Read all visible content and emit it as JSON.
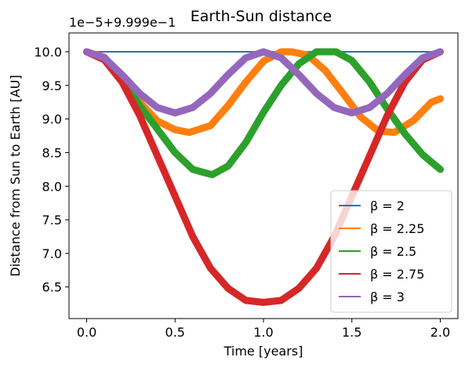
{
  "chart_data": {
    "type": "line",
    "title": "Earth-Sun distance",
    "xlabel": "Time [years]",
    "ylabel": "Distance from Sun to Earth [AU]",
    "offset_text": "1e−5+9.999e−1",
    "xlim": [
      -0.1,
      2.1
    ],
    "ylim": [
      6.03,
      10.28
    ],
    "x_ticks": [
      0.0,
      0.5,
      1.0,
      1.5,
      2.0
    ],
    "x_tick_labels": [
      "0.0",
      "0.5",
      "1.0",
      "1.5",
      "2.0"
    ],
    "y_ticks": [
      6.5,
      7.0,
      7.5,
      8.0,
      8.5,
      9.0,
      9.5,
      10.0
    ],
    "y_tick_labels": [
      "6.5",
      "7.0",
      "7.5",
      "8.0",
      "8.5",
      "9.0",
      "9.5",
      "10.0"
    ],
    "grid": false,
    "legend_position": "lower-right",
    "series": [
      {
        "name": "β = 2",
        "color": "#1f77b4",
        "x": [
          0.0,
          2.0
        ],
        "y": [
          10.0,
          10.0
        ]
      },
      {
        "name": "β = 2.25",
        "color": "#ff7f0e",
        "x": [
          0.0,
          0.1,
          0.2,
          0.3,
          0.4,
          0.5,
          0.58,
          0.7,
          0.8,
          0.9,
          1.0,
          1.1,
          1.16,
          1.25,
          1.35,
          1.45,
          1.55,
          1.65,
          1.74,
          1.85,
          1.95,
          2.0
        ],
        "y": [
          10.0,
          9.92,
          9.62,
          9.25,
          8.97,
          8.84,
          8.8,
          8.9,
          9.2,
          9.55,
          9.86,
          10.0,
          10.0,
          9.95,
          9.72,
          9.38,
          9.03,
          8.82,
          8.8,
          8.98,
          9.25,
          9.3
        ]
      },
      {
        "name": "β = 2.5",
        "color": "#2ca02c",
        "x": [
          0.0,
          0.1,
          0.2,
          0.3,
          0.4,
          0.5,
          0.6,
          0.71,
          0.8,
          0.9,
          1.0,
          1.1,
          1.2,
          1.3,
          1.41,
          1.5,
          1.6,
          1.7,
          1.8,
          1.9,
          2.0
        ],
        "y": [
          10.0,
          9.9,
          9.6,
          9.2,
          8.85,
          8.5,
          8.25,
          8.17,
          8.3,
          8.65,
          9.1,
          9.5,
          9.82,
          10.0,
          10.0,
          9.87,
          9.55,
          9.15,
          8.78,
          8.47,
          8.25
        ]
      },
      {
        "name": "β = 2.75",
        "color": "#d62728",
        "x": [
          0.0,
          0.1,
          0.2,
          0.3,
          0.4,
          0.5,
          0.6,
          0.7,
          0.8,
          0.9,
          1.0,
          1.1,
          1.2,
          1.3,
          1.4,
          1.5,
          1.6,
          1.7,
          1.8,
          1.9,
          2.0
        ],
        "y": [
          10.0,
          9.88,
          9.55,
          9.05,
          8.45,
          7.85,
          7.25,
          6.78,
          6.48,
          6.3,
          6.27,
          6.3,
          6.48,
          6.78,
          7.25,
          7.85,
          8.45,
          9.05,
          9.55,
          9.88,
          10.0
        ]
      },
      {
        "name": "β = 3",
        "color": "#9467bd",
        "x": [
          0.0,
          0.1,
          0.2,
          0.3,
          0.4,
          0.5,
          0.6,
          0.7,
          0.8,
          0.9,
          1.0,
          1.1,
          1.2,
          1.3,
          1.4,
          1.5,
          1.6,
          1.7,
          1.8,
          1.9,
          2.0
        ],
        "y": [
          10.0,
          9.91,
          9.66,
          9.38,
          9.17,
          9.09,
          9.17,
          9.38,
          9.66,
          9.91,
          10.0,
          9.91,
          9.66,
          9.38,
          9.17,
          9.09,
          9.17,
          9.38,
          9.66,
          9.91,
          10.0
        ]
      }
    ]
  }
}
